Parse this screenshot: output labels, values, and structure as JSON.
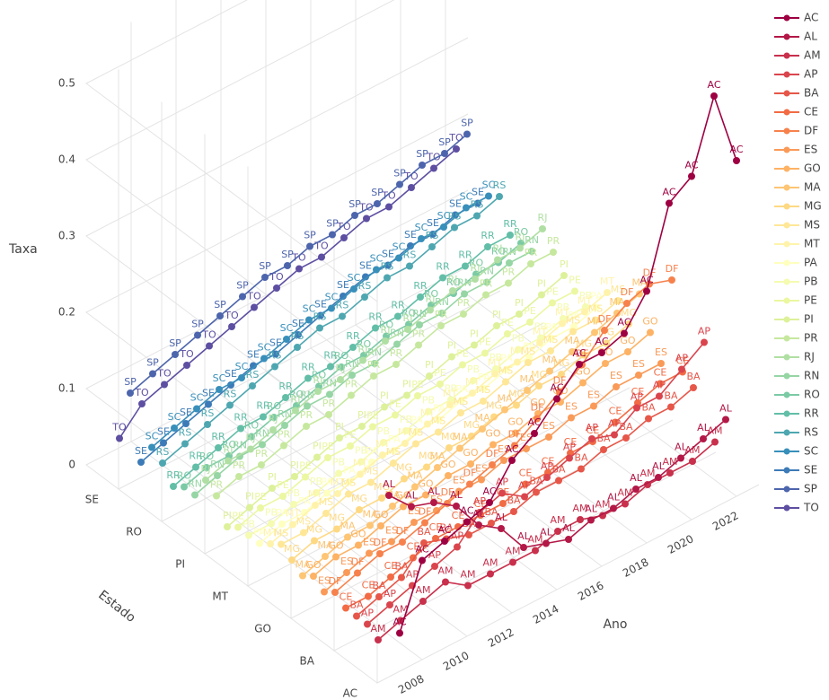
{
  "chart_data": {
    "type": "line3d",
    "zlabel": "Taxa",
    "ylabel": "Estado",
    "xlabel": "Ano",
    "x": [
      2007,
      2008,
      2009,
      2010,
      2011,
      2012,
      2013,
      2014,
      2015,
      2016,
      2017,
      2018,
      2019,
      2020,
      2021,
      2022
    ],
    "xlim": [
      2006,
      2023
    ],
    "xticks": [
      2008,
      2010,
      2012,
      2014,
      2016,
      2018,
      2020,
      2022
    ],
    "zlim": [
      0,
      0.55
    ],
    "zticks": [
      0,
      0.1,
      0.2,
      0.3,
      0.4,
      0.5
    ],
    "ycategories": [
      "AC",
      null,
      null,
      null,
      "BA",
      null,
      null,
      null,
      "GO",
      null,
      null,
      null,
      "MT",
      null,
      null,
      null,
      "PI",
      null,
      null,
      null,
      "RO",
      null,
      null,
      null,
      "SE",
      null,
      null
    ],
    "grid": true,
    "legend": "right",
    "series": [
      {
        "name": "AC",
        "color": "#9e0142",
        "values": [
          0.05,
          0.13,
          0.14,
          0.15,
          0.16,
          0.2,
          0.22,
          0.25,
          0.28,
          0.28,
          0.29,
          0.33,
          0.43,
          0.45,
          0.54,
          0.44
        ]
      },
      {
        "name": "AL",
        "color": "#b31847",
        "values": [
          0.22,
          0.19,
          0.18,
          0.16,
          0.12,
          0.1,
          0.06,
          0.05,
          0.04,
          0.05,
          0.05,
          0.06,
          0.06,
          0.07,
          0.08,
          0.09
        ]
      },
      {
        "name": "AM",
        "color": "#c8304c",
        "values": [
          0.02,
          0.03,
          0.04,
          0.05,
          0.03,
          0.03,
          0.03,
          0.03,
          0.04,
          0.04,
          0.03,
          0.03,
          0.04,
          0.04,
          0.04,
          0.05
        ]
      },
      {
        "name": "AP",
        "color": "#da454d",
        "values": [
          0.03,
          0.04,
          0.05,
          0.06,
          0.07,
          0.1,
          0.11,
          0.09,
          0.1,
          0.11,
          0.12,
          0.11,
          0.13,
          0.13,
          0.15,
          0.17
        ]
      },
      {
        "name": "BA",
        "color": "#e65749",
        "values": [
          0.03,
          0.04,
          0.05,
          0.08,
          0.07,
          0.06,
          0.06,
          0.06,
          0.07,
          0.07,
          0.07,
          0.08,
          0.08,
          0.09,
          0.09,
          0.1
        ]
      },
      {
        "name": "CE",
        "color": "#f26b44",
        "values": [
          0.03,
          0.03,
          0.04,
          0.05,
          0.06,
          0.06,
          0.06,
          0.06,
          0.07,
          0.07,
          0.08,
          0.08,
          0.09,
          0.1,
          0.11,
          0.11
        ]
      },
      {
        "name": "DF",
        "color": "#f7814c",
        "values": [
          0.04,
          0.05,
          0.06,
          0.06,
          0.07,
          0.08,
          0.09,
          0.1,
          0.11,
          0.13,
          0.15,
          0.17,
          0.2,
          0.22,
          0.23,
          0.22
        ]
      },
      {
        "name": "ES",
        "color": "#fa9a58",
        "values": [
          0.03,
          0.04,
          0.05,
          0.05,
          0.06,
          0.06,
          0.07,
          0.07,
          0.08,
          0.08,
          0.08,
          0.09,
          0.09,
          0.1,
          0.1,
          0.1
        ]
      },
      {
        "name": "GO",
        "color": "#fdb264",
        "values": [
          0.04,
          0.05,
          0.05,
          0.06,
          0.07,
          0.07,
          0.08,
          0.08,
          0.09,
          0.09,
          0.1,
          0.1,
          0.11,
          0.12,
          0.12,
          0.13
        ]
      },
      {
        "name": "MA",
        "color": "#fdc574",
        "values": [
          0.03,
          0.04,
          0.05,
          0.05,
          0.06,
          0.07,
          0.08,
          0.09,
          0.1,
          0.11,
          0.12,
          0.13,
          0.14,
          0.15,
          0.16,
          0.17
        ]
      },
      {
        "name": "MG",
        "color": "#fed984",
        "values": [
          0.04,
          0.05,
          0.05,
          0.06,
          0.06,
          0.07,
          0.07,
          0.08,
          0.08,
          0.09,
          0.09,
          0.1,
          0.1,
          0.11,
          0.11,
          0.12
        ]
      },
      {
        "name": "MS",
        "color": "#fee797",
        "values": [
          0.05,
          0.05,
          0.06,
          0.07,
          0.07,
          0.08,
          0.09,
          0.09,
          0.1,
          0.1,
          0.11,
          0.12,
          0.12,
          0.13,
          0.13,
          0.14
        ]
      },
      {
        "name": "MT",
        "color": "#fff3ab",
        "values": [
          0.04,
          0.05,
          0.06,
          0.06,
          0.07,
          0.08,
          0.08,
          0.09,
          0.1,
          0.1,
          0.11,
          0.11,
          0.12,
          0.13,
          0.13,
          0.14
        ]
      },
      {
        "name": "PA",
        "color": "#ffffbf",
        "values": [
          0.03,
          0.04,
          0.04,
          0.05,
          0.05,
          0.06,
          0.06,
          0.07,
          0.07,
          0.08,
          0.08,
          0.09,
          0.09,
          0.1,
          0.1,
          0.11
        ]
      },
      {
        "name": "PB",
        "color": "#f5fbb0",
        "values": [
          0.03,
          0.03,
          0.04,
          0.04,
          0.05,
          0.05,
          0.06,
          0.06,
          0.07,
          0.07,
          0.08,
          0.08,
          0.09,
          0.09,
          0.1,
          0.1
        ]
      },
      {
        "name": "PE",
        "color": "#ecf7a1",
        "values": [
          0.03,
          0.04,
          0.04,
          0.05,
          0.06,
          0.06,
          0.07,
          0.07,
          0.08,
          0.08,
          0.09,
          0.09,
          0.1,
          0.1,
          0.11,
          0.11
        ]
      },
      {
        "name": "PI",
        "color": "#ddf19a",
        "values": [
          0.02,
          0.03,
          0.04,
          0.04,
          0.05,
          0.06,
          0.06,
          0.07,
          0.07,
          0.08,
          0.09,
          0.09,
          0.1,
          0.1,
          0.11,
          0.12
        ]
      },
      {
        "name": "PR",
        "color": "#c6e89e",
        "values": [
          0.05,
          0.06,
          0.06,
          0.07,
          0.08,
          0.08,
          0.09,
          0.1,
          0.1,
          0.11,
          0.12,
          0.12,
          0.13,
          0.13,
          0.14,
          0.14
        ]
      },
      {
        "name": "RJ",
        "color": "#b0dfa3",
        "values": [
          0.06,
          0.07,
          0.07,
          0.08,
          0.09,
          0.1,
          0.1,
          0.11,
          0.12,
          0.12,
          0.13,
          0.14,
          0.14,
          0.15,
          0.15,
          0.16
        ]
      },
      {
        "name": "RN",
        "color": "#96d5a4",
        "values": [
          0.03,
          0.04,
          0.05,
          0.05,
          0.06,
          0.07,
          0.07,
          0.08,
          0.08,
          0.09,
          0.1,
          0.1,
          0.11,
          0.11,
          0.12,
          0.12
        ]
      },
      {
        "name": "RO",
        "color": "#7bcaa5",
        "values": [
          0.03,
          0.04,
          0.04,
          0.05,
          0.06,
          0.06,
          0.07,
          0.08,
          0.08,
          0.09,
          0.09,
          0.1,
          0.1,
          0.11,
          0.11,
          0.12
        ]
      },
      {
        "name": "RR",
        "color": "#62bea7",
        "values": [
          0.02,
          0.03,
          0.04,
          0.05,
          0.05,
          0.06,
          0.07,
          0.07,
          0.08,
          0.09,
          0.09,
          0.1,
          0.11,
          0.11,
          0.12,
          0.12
        ]
      },
      {
        "name": "RS",
        "color": "#4ea7b0",
        "values": [
          0.04,
          0.05,
          0.06,
          0.07,
          0.08,
          0.09,
          0.1,
          0.11,
          0.11,
          0.12,
          0.13,
          0.13,
          0.14,
          0.15,
          0.15,
          0.16
        ]
      },
      {
        "name": "SC",
        "color": "#388fba",
        "values": [
          0.05,
          0.06,
          0.07,
          0.08,
          0.08,
          0.09,
          0.1,
          0.11,
          0.11,
          0.12,
          0.13,
          0.13,
          0.14,
          0.14,
          0.15,
          0.15
        ]
      },
      {
        "name": "SE",
        "color": "#3c7bb7",
        "values": [
          0.02,
          0.03,
          0.04,
          0.05,
          0.06,
          0.07,
          0.07,
          0.08,
          0.09,
          0.1,
          0.11,
          0.11,
          0.12,
          0.12,
          0.13,
          0.13
        ]
      },
      {
        "name": "SP",
        "color": "#4d65ac",
        "values": [
          0.1,
          0.11,
          0.12,
          0.13,
          0.14,
          0.15,
          0.16,
          0.16,
          0.17,
          0.17,
          0.18,
          0.18,
          0.19,
          0.2,
          0.2,
          0.21
        ]
      },
      {
        "name": "TO",
        "color": "#5e4fa2",
        "values": [
          0.03,
          0.06,
          0.07,
          0.08,
          0.09,
          0.1,
          0.11,
          0.12,
          0.13,
          0.13,
          0.14,
          0.15,
          0.15,
          0.16,
          0.17,
          0.18
        ]
      }
    ]
  }
}
